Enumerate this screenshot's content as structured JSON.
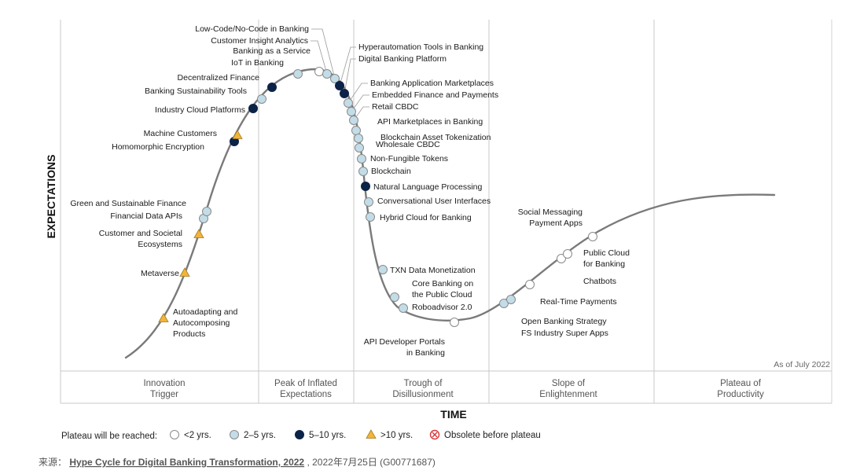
{
  "chart_data": {
    "type": "scatter",
    "xlabel": "TIME",
    "ylabel": "EXPECTATIONS",
    "as_of": "As of July 2022",
    "phases": [
      {
        "line1": "Innovation",
        "line2": "Trigger"
      },
      {
        "line1": "Peak of Inflated",
        "line2": "Expectations"
      },
      {
        "line1": "Trough of",
        "line2": "Disillusionment"
      },
      {
        "line1": "Slope of",
        "line2": "Enlightenment"
      },
      {
        "line1": "Plateau of",
        "line2": "Productivity"
      }
    ],
    "legend": {
      "title": "Plateau will be reached:",
      "items": [
        {
          "key": "lt2",
          "label": "<2 yrs.",
          "marker": "circle",
          "color": "#ffffff"
        },
        {
          "key": "2to5",
          "label": "2–5 yrs.",
          "marker": "circle",
          "color": "#c3dde8"
        },
        {
          "key": "5to10",
          "label": "5–10 yrs.",
          "marker": "circle",
          "color": "#0c2348"
        },
        {
          "key": "gt10",
          "label": ">10 yrs.",
          "marker": "triangle",
          "color": "#f2b43a"
        },
        {
          "key": "obsolete",
          "label": "Obsolete before plateau",
          "marker": "cross",
          "color": "#d6393c"
        }
      ]
    },
    "technologies": [
      {
        "lines": [
          "Autoadapting and",
          "Autocomposing",
          "Products"
        ],
        "category": "gt10",
        "phase": "Innovation Trigger"
      },
      {
        "lines": [
          "Metaverse"
        ],
        "category": "gt10",
        "phase": "Innovation Trigger"
      },
      {
        "lines": [
          "Customer and Societal",
          "Ecosystems"
        ],
        "category": "gt10",
        "phase": "Innovation Trigger"
      },
      {
        "lines": [
          "Financial Data APIs"
        ],
        "category": "2to5",
        "phase": "Innovation Trigger"
      },
      {
        "lines": [
          "Green and Sustainable Finance"
        ],
        "category": "2to5",
        "phase": "Innovation Trigger"
      },
      {
        "lines": [
          "Homomorphic Encryption"
        ],
        "category": "5to10",
        "phase": "Innovation Trigger"
      },
      {
        "lines": [
          "Machine Customers"
        ],
        "category": "gt10",
        "phase": "Innovation Trigger"
      },
      {
        "lines": [
          "Industry Cloud Platforms"
        ],
        "category": "5to10",
        "phase": "Innovation Trigger"
      },
      {
        "lines": [
          "Banking Sustainability Tools"
        ],
        "category": "2to5",
        "phase": "Innovation Trigger"
      },
      {
        "lines": [
          "Decentralized Finance"
        ],
        "category": "5to10",
        "phase": "Innovation Trigger"
      },
      {
        "lines": [
          "IoT in Banking"
        ],
        "category": "2to5",
        "phase": "Peak of Inflated Expectations"
      },
      {
        "lines": [
          "Banking as a Service"
        ],
        "category": "lt2",
        "phase": "Peak of Inflated Expectations"
      },
      {
        "lines": [
          "Customer Insight Analytics"
        ],
        "category": "2to5",
        "phase": "Peak of Inflated Expectations"
      },
      {
        "lines": [
          "Low-Code/No-Code in Banking"
        ],
        "category": "2to5",
        "phase": "Peak of Inflated Expectations"
      },
      {
        "lines": [
          "Hyperautomation Tools in Banking"
        ],
        "category": "5to10",
        "phase": "Peak of Inflated Expectations"
      },
      {
        "lines": [
          "Digital Banking Platform"
        ],
        "category": "5to10",
        "phase": "Peak of Inflated Expectations"
      },
      {
        "lines": [
          "Banking Application Marketplaces"
        ],
        "category": "2to5",
        "phase": "Peak of Inflated Expectations"
      },
      {
        "lines": [
          "Embedded Finance and Payments"
        ],
        "category": "2to5",
        "phase": "Peak of Inflated Expectations"
      },
      {
        "lines": [
          "Retail CBDC"
        ],
        "category": "2to5",
        "phase": "Peak of Inflated Expectations"
      },
      {
        "lines": [
          "API Marketplaces in Banking"
        ],
        "category": "2to5",
        "phase": "Trough of Disillusionment"
      },
      {
        "lines": [
          "Blockchain Asset Tokenization"
        ],
        "category": "2to5",
        "phase": "Trough of Disillusionment"
      },
      {
        "lines": [
          "Wholesale CBDC"
        ],
        "category": "2to5",
        "phase": "Trough of Disillusionment"
      },
      {
        "lines": [
          "Non-Fungible Tokens"
        ],
        "category": "2to5",
        "phase": "Trough of Disillusionment"
      },
      {
        "lines": [
          "Blockchain"
        ],
        "category": "2to5",
        "phase": "Trough of Disillusionment"
      },
      {
        "lines": [
          "Natural Language Processing"
        ],
        "category": "5to10",
        "phase": "Trough of Disillusionment"
      },
      {
        "lines": [
          "Conversational User Interfaces"
        ],
        "category": "2to5",
        "phase": "Trough of Disillusionment"
      },
      {
        "lines": [
          "Hybrid Cloud for Banking"
        ],
        "category": "2to5",
        "phase": "Trough of Disillusionment"
      },
      {
        "lines": [
          "TXN Data Monetization"
        ],
        "category": "2to5",
        "phase": "Trough of Disillusionment"
      },
      {
        "lines": [
          "Core Banking on",
          "the Public Cloud"
        ],
        "category": "2to5",
        "phase": "Trough of Disillusionment"
      },
      {
        "lines": [
          "Roboadvisor 2.0"
        ],
        "category": "2to5",
        "phase": "Trough of Disillusionment"
      },
      {
        "lines": [
          "API Developer Portals",
          "in Banking"
        ],
        "category": "lt2",
        "phase": "Trough of Disillusionment"
      },
      {
        "lines": [
          "FS Industry Super Apps"
        ],
        "category": "2to5",
        "phase": "Slope of Enlightenment"
      },
      {
        "lines": [
          "Open Banking Strategy"
        ],
        "category": "2to5",
        "phase": "Slope of Enlightenment"
      },
      {
        "lines": [
          "Real-Time Payments"
        ],
        "category": "lt2",
        "phase": "Slope of Enlightenment"
      },
      {
        "lines": [
          "Chatbots"
        ],
        "category": "lt2",
        "phase": "Slope of Enlightenment"
      },
      {
        "lines": [
          "Public Cloud",
          "for Banking"
        ],
        "category": "lt2",
        "phase": "Slope of Enlightenment"
      },
      {
        "lines": [
          "Social Messaging",
          "Payment Apps"
        ],
        "category": "lt2",
        "phase": "Slope of Enlightenment"
      }
    ]
  },
  "source": {
    "prefix": "来源：",
    "link": "Hype Cycle for Digital Banking Transformation, 2022",
    "suffix": ", 2022年7月25日 (G00771687)"
  }
}
